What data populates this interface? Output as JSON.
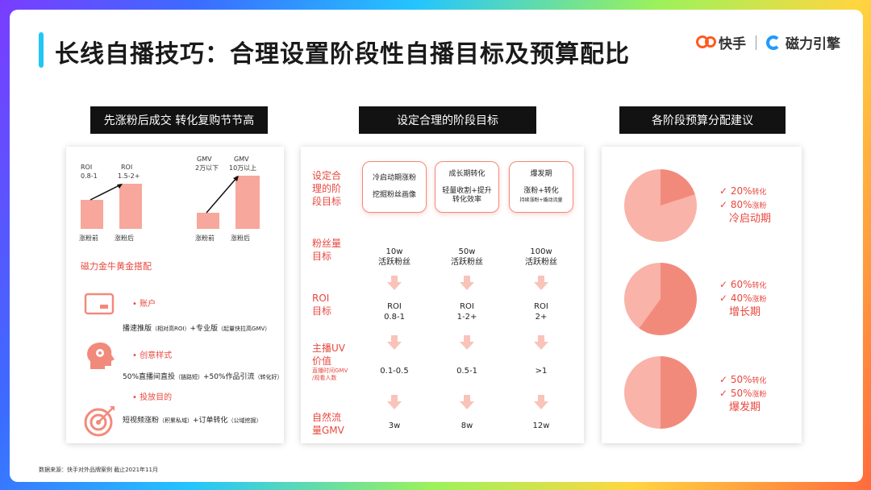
{
  "title": "长线自播技巧：合理设置阶段性自播目标及预算配比",
  "logos": {
    "kuaishou": "快手",
    "cili": "磁力引擎"
  },
  "headers": [
    "先涨粉后成交 转化复购节节高",
    "设定合理的阶段目标",
    "各阶段预算分配建议"
  ],
  "left": {
    "chart1": {
      "roi_before_label": "ROI",
      "roi_before_value": "0.8-1",
      "roi_after_label": "ROI",
      "roi_after_value": "1.5-2+",
      "x_before": "涨粉前",
      "x_after": "涨粉后"
    },
    "chart2": {
      "gmv_before_label": "GMV",
      "gmv_before_value": "2万以下",
      "gmv_after_label": "GMV",
      "gmv_after_value": "10万以上",
      "x_before": "涨粉前",
      "x_after": "涨粉后"
    },
    "section_title": "磁力金牛黄金搭配",
    "items": [
      {
        "bullet": "•  账户",
        "desc_a": "播速推版",
        "desc_a_note": "（相对高ROI）",
        "desc_b": "+专业版",
        "desc_b_note": "（起量快拉高GMV）"
      },
      {
        "bullet": "•  创意样式",
        "desc_a": "50%直播间直投",
        "desc_a_note": "（链路短）",
        "desc_b": "+50%作品引流",
        "desc_b_note": "（转化好）"
      },
      {
        "bullet": "•  投放目的",
        "desc_a": "短视频涨粉",
        "desc_a_note": "（积累私域）",
        "desc_b": "+订单转化",
        "desc_b_note": "（公域挖掘）"
      }
    ]
  },
  "middle": {
    "row_labels": {
      "stage": [
        "设定合",
        "理的阶",
        "段目标"
      ],
      "fans": [
        "粉丝量",
        "目标"
      ],
      "roi": [
        "ROI",
        "目标"
      ],
      "uv": [
        "主播UV",
        "价值"
      ],
      "uv_note": [
        "直播时间GMV",
        "/观看人数"
      ],
      "gmv": [
        "自然流",
        "量GMV"
      ]
    },
    "stages": [
      {
        "name": "冷启动期涨粉",
        "task": "挖掘粉丝画像",
        "task_note": "",
        "fans": "10w",
        "fans_unit": "活跃粉丝",
        "roi_label": "ROI",
        "roi": "0.8-1",
        "uv": "0.1-0.5",
        "gmv": "3w"
      },
      {
        "name": "成长期转化",
        "task": "轻量收割+提升",
        "task_note": "转化效率",
        "fans": "50w",
        "fans_unit": "活跃粉丝",
        "roi_label": "ROI",
        "roi": "1-2+",
        "uv": "0.5-1",
        "gmv": "8w"
      },
      {
        "name": "爆发期",
        "task": "涨粉+转化",
        "task_note": "持续涨粉+撬动流量",
        "fans": "100w",
        "fans_unit": "活跃粉丝",
        "roi_label": "ROI",
        "roi": "2+",
        "uv": ">1",
        "gmv": "12w"
      }
    ]
  },
  "right": {
    "pies": [
      {
        "stage": "冷启动期",
        "convert_pct": "✓ 20%",
        "convert_label": "转化",
        "fans_pct": "✓ 80%",
        "fans_label": "涨粉",
        "convert_fraction": 0.2
      },
      {
        "stage": "增长期",
        "convert_pct": "✓ 60%",
        "convert_label": "转化",
        "fans_pct": "✓ 40%",
        "fans_label": "涨粉",
        "convert_fraction": 0.6
      },
      {
        "stage": "爆发期",
        "convert_pct": "✓ 50%",
        "convert_label": "转化",
        "fans_pct": "✓ 50%",
        "fans_label": "涨粉",
        "convert_fraction": 0.5
      }
    ],
    "colors": {
      "convert": "#f28a7c",
      "fans": "#f9b3a8"
    }
  },
  "footer": "数据来源：快手对外品牌案例 截止2021年11月"
}
